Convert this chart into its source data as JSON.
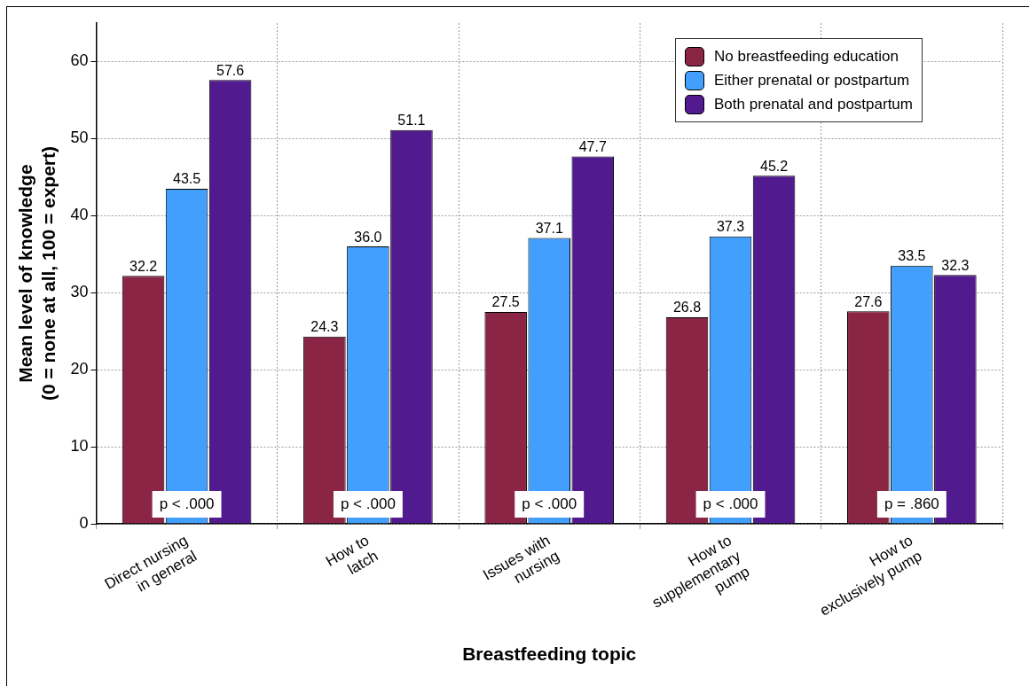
{
  "chart_data": {
    "type": "bar",
    "xlabel": "Breastfeeding topic",
    "ylabel": "Mean level of knowledge\n(0 = none at all, 100 = expert)",
    "categories": [
      "Direct nursing\nin general",
      "How to\nlatch",
      "Issues with\nnursing",
      "How to\nsupplementary\npump",
      "How to\nexclusively pump"
    ],
    "series": [
      {
        "name": "No breastfeeding education",
        "color": "#8b2546",
        "values": [
          32.2,
          24.3,
          27.5,
          26.8,
          27.6
        ],
        "value_labels": [
          "32.2",
          "24.3",
          "27.5",
          "26.8",
          "27.6"
        ]
      },
      {
        "name": "Either prenatal or postpartum",
        "color": "#429ffd",
        "values": [
          43.5,
          36.0,
          37.1,
          37.3,
          33.5
        ],
        "value_labels": [
          "43.5",
          "36.0",
          "37.1",
          "37.3",
          "33.5"
        ]
      },
      {
        "name": "Both prenatal and postpartum",
        "color": "#521a8f",
        "values": [
          57.6,
          51.1,
          47.7,
          45.2,
          32.3
        ],
        "value_labels": [
          "57.6",
          "51.1",
          "47.7",
          "45.2",
          "32.3"
        ]
      }
    ],
    "annotations": [
      "p < .000",
      "p < .000",
      "p < .000",
      "p < .000",
      "p = .860"
    ],
    "ylim": [
      0,
      65
    ],
    "yticks": [
      0,
      10,
      20,
      30,
      40,
      50,
      60
    ],
    "grid": true,
    "legend": "top right"
  }
}
